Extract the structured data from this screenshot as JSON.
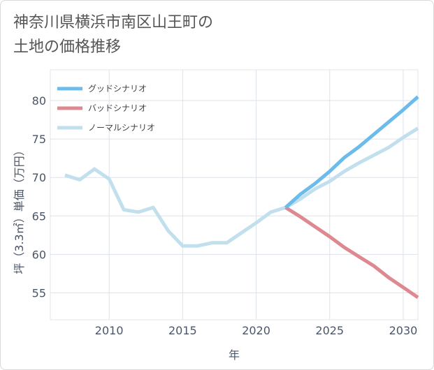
{
  "title_line1": "神奈川県横浜市南区山王町の",
  "title_line2": "土地の価格推移",
  "chart_data": {
    "type": "line",
    "title": "神奈川県横浜市南区山王町の土地の価格推移",
    "xlabel": "年",
    "ylabel": "坪（3.3㎡）単価（万円）",
    "xlim": [
      2006,
      2031
    ],
    "ylim": [
      51.5,
      84
    ],
    "xticks": [
      2010,
      2015,
      2020,
      2025,
      2030
    ],
    "yticks": [
      55,
      60,
      65,
      70,
      75,
      80
    ],
    "grid": true,
    "legend_position": "top-left",
    "series": [
      {
        "name": "グッドシナリオ",
        "color": "#6bbbeb",
        "x": [
          2022,
          2023,
          2024,
          2025,
          2026,
          2027,
          2028,
          2029,
          2030,
          2031
        ],
        "values": [
          66.1,
          67.8,
          69.2,
          70.8,
          72.6,
          74.0,
          75.6,
          77.2,
          78.8,
          80.5
        ]
      },
      {
        "name": "バッドシナリオ",
        "color": "#de8890",
        "x": [
          2022,
          2023,
          2024,
          2025,
          2026,
          2027,
          2028,
          2029,
          2030,
          2031
        ],
        "values": [
          66.1,
          64.9,
          63.6,
          62.3,
          60.9,
          59.7,
          58.5,
          57.0,
          55.7,
          54.4
        ]
      },
      {
        "name": "ノーマルシナリオ",
        "color": "#c2dfee",
        "x": [
          2007,
          2008,
          2009,
          2010,
          2011,
          2012,
          2013,
          2014,
          2015,
          2016,
          2017,
          2018,
          2019,
          2020,
          2021,
          2022,
          2023,
          2024,
          2025,
          2026,
          2027,
          2028,
          2029,
          2030,
          2031
        ],
        "values": [
          70.3,
          69.7,
          71.1,
          69.8,
          65.8,
          65.5,
          66.1,
          63.1,
          61.1,
          61.1,
          61.5,
          61.5,
          62.8,
          64.1,
          65.5,
          66.1,
          67.2,
          68.5,
          69.5,
          70.8,
          71.9,
          72.9,
          73.9,
          75.2,
          76.4
        ]
      }
    ]
  }
}
